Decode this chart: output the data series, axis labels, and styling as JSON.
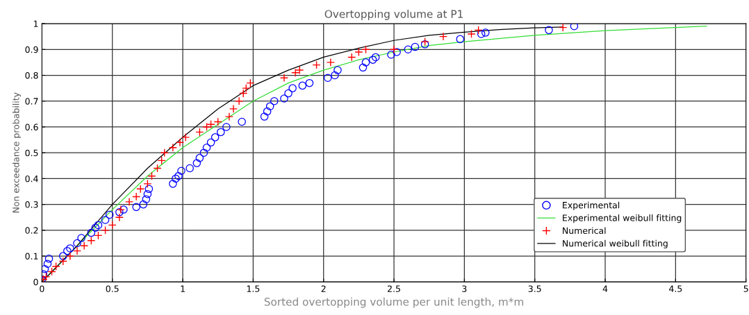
{
  "chart_data": {
    "type": "scatter",
    "title": "Overtopping volume at P1",
    "xlabel": "Sorted overtopping volume per unit length, m*m",
    "ylabel": "Non exceedance probability",
    "xlim": [
      0,
      5
    ],
    "ylim": [
      0,
      1
    ],
    "xticks": [
      0,
      0.5,
      1,
      1.5,
      2,
      2.5,
      3,
      3.5,
      4,
      4.5,
      5
    ],
    "yticks": [
      0,
      0.1,
      0.2,
      0.3,
      0.4,
      0.5,
      0.6,
      0.7,
      0.8,
      0.9,
      1
    ],
    "grid": true,
    "legend": "lower right",
    "series": [
      {
        "name": "Experimental",
        "marker": "circle",
        "color": "#0000ff",
        "x": [
          0.0,
          0.01,
          0.02,
          0.04,
          0.05,
          0.15,
          0.18,
          0.2,
          0.25,
          0.28,
          0.35,
          0.38,
          0.4,
          0.45,
          0.48,
          0.55,
          0.58,
          0.67,
          0.72,
          0.74,
          0.75,
          0.76,
          0.93,
          0.95,
          0.97,
          0.99,
          1.05,
          1.1,
          1.12,
          1.15,
          1.17,
          1.2,
          1.23,
          1.27,
          1.31,
          1.42,
          1.58,
          1.6,
          1.62,
          1.65,
          1.72,
          1.75,
          1.78,
          1.85,
          1.9,
          2.03,
          2.08,
          2.1,
          2.28,
          2.3,
          2.35,
          2.37,
          2.48,
          2.52,
          2.6,
          2.65,
          2.72,
          2.97,
          3.12,
          3.15,
          3.6,
          3.78
        ],
        "values": [
          0.01,
          0.03,
          0.05,
          0.07,
          0.09,
          0.1,
          0.12,
          0.13,
          0.15,
          0.17,
          0.19,
          0.21,
          0.22,
          0.24,
          0.26,
          0.27,
          0.28,
          0.29,
          0.3,
          0.32,
          0.34,
          0.36,
          0.38,
          0.4,
          0.41,
          0.43,
          0.44,
          0.46,
          0.48,
          0.5,
          0.52,
          0.54,
          0.56,
          0.58,
          0.6,
          0.62,
          0.64,
          0.66,
          0.68,
          0.7,
          0.71,
          0.73,
          0.75,
          0.76,
          0.77,
          0.79,
          0.8,
          0.82,
          0.83,
          0.85,
          0.86,
          0.87,
          0.88,
          0.89,
          0.9,
          0.91,
          0.92,
          0.94,
          0.96,
          0.965,
          0.975,
          0.99
        ]
      },
      {
        "name": "Experimental weibull fitting",
        "type": "line",
        "marker": "none",
        "color": "#33dd33",
        "x": [
          0,
          0.25,
          0.5,
          0.75,
          1,
          1.25,
          1.5,
          1.75,
          2,
          2.25,
          2.5,
          2.75,
          3,
          3.5,
          4,
          4.5,
          4.72
        ],
        "values": [
          0,
          0.14,
          0.28,
          0.41,
          0.52,
          0.61,
          0.7,
          0.77,
          0.82,
          0.86,
          0.89,
          0.915,
          0.93,
          0.955,
          0.973,
          0.985,
          0.99
        ]
      },
      {
        "name": "Numerical",
        "marker": "cross",
        "color": "#ff0000",
        "x": [
          0.01,
          0.03,
          0.07,
          0.1,
          0.15,
          0.2,
          0.25,
          0.3,
          0.35,
          0.4,
          0.45,
          0.5,
          0.55,
          0.56,
          0.62,
          0.67,
          0.7,
          0.75,
          0.78,
          0.82,
          0.85,
          0.87,
          0.93,
          0.98,
          1.02,
          1.12,
          1.17,
          1.2,
          1.25,
          1.33,
          1.36,
          1.4,
          1.43,
          1.45,
          1.48,
          1.72,
          1.8,
          1.83,
          1.95,
          2.05,
          2.2,
          2.25,
          2.3,
          2.5,
          2.72,
          2.85,
          3.05,
          3.1,
          3.7
        ],
        "values": [
          0.01,
          0.02,
          0.04,
          0.06,
          0.08,
          0.1,
          0.12,
          0.14,
          0.16,
          0.18,
          0.2,
          0.22,
          0.25,
          0.28,
          0.31,
          0.33,
          0.36,
          0.38,
          0.41,
          0.44,
          0.47,
          0.5,
          0.52,
          0.54,
          0.56,
          0.58,
          0.6,
          0.61,
          0.62,
          0.64,
          0.67,
          0.7,
          0.73,
          0.75,
          0.77,
          0.79,
          0.81,
          0.82,
          0.84,
          0.85,
          0.87,
          0.89,
          0.9,
          0.9,
          0.93,
          0.95,
          0.96,
          0.975,
          0.985
        ]
      },
      {
        "name": "Numerical weibull fitting",
        "type": "line",
        "marker": "none",
        "color": "#000000",
        "x": [
          0,
          0.25,
          0.5,
          0.75,
          1,
          1.25,
          1.5,
          1.75,
          2,
          2.25,
          2.5,
          2.75,
          3,
          3.25,
          3.5,
          3.7
        ],
        "values": [
          0,
          0.14,
          0.3,
          0.44,
          0.56,
          0.67,
          0.76,
          0.82,
          0.87,
          0.905,
          0.935,
          0.955,
          0.967,
          0.977,
          0.984,
          0.987
        ]
      }
    ]
  }
}
